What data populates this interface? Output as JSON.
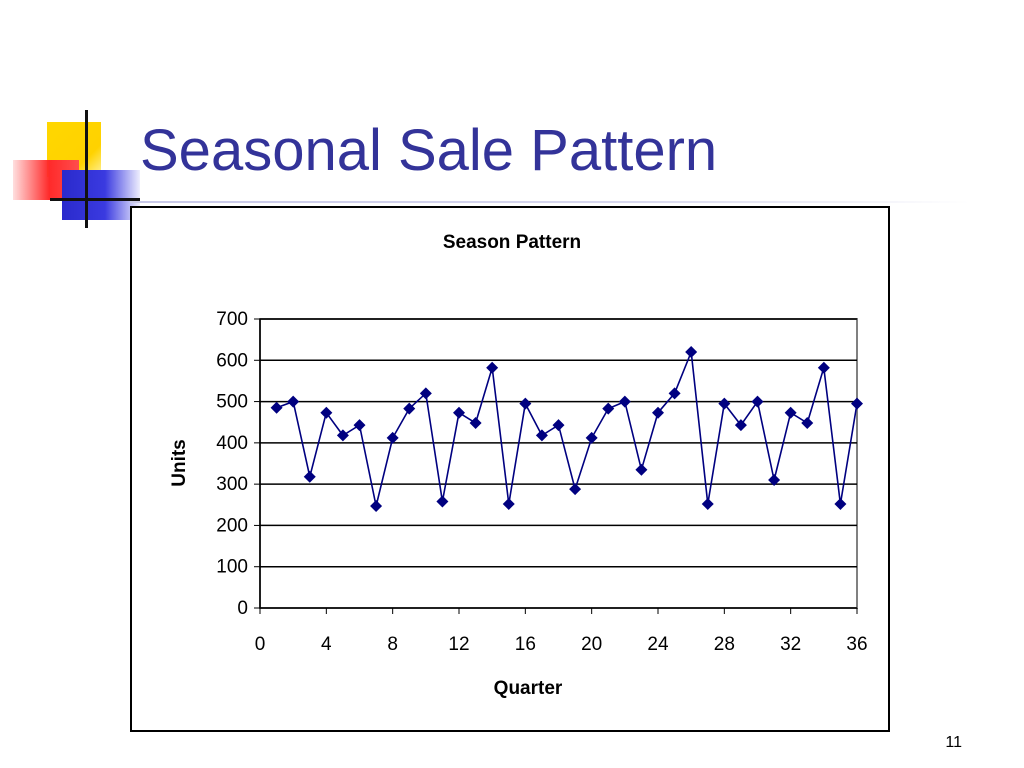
{
  "slide": {
    "title": "Seasonal Sale Pattern",
    "page_number": "11",
    "title_color": "#333399"
  },
  "chart_data": {
    "type": "line",
    "title": "Season Pattern",
    "xlabel": "Quarter",
    "ylabel": "Units",
    "xlim": [
      0,
      36
    ],
    "ylim": [
      0,
      700
    ],
    "xticks": [
      0,
      4,
      8,
      12,
      16,
      20,
      24,
      28,
      32,
      36
    ],
    "yticks": [
      0,
      100,
      200,
      300,
      400,
      500,
      600,
      700
    ],
    "grid": "horizontal",
    "legend": "none",
    "marker": "diamond",
    "series": [
      {
        "color": "#000080",
        "x": [
          1,
          2,
          3,
          4,
          5,
          6,
          7,
          8,
          9,
          10,
          11,
          12,
          13,
          14,
          15,
          16,
          17,
          18,
          19,
          20,
          21,
          22,
          23,
          24,
          25,
          26,
          27,
          28,
          29,
          30,
          31,
          32,
          33,
          34,
          35,
          36
        ],
        "y": [
          485,
          500,
          318,
          473,
          418,
          443,
          247,
          412,
          483,
          520,
          258,
          473,
          448,
          582,
          252,
          495,
          418,
          443,
          288,
          412,
          483,
          500,
          335,
          473,
          520,
          620,
          252,
          495,
          443,
          500,
          310,
          473,
          448,
          582,
          252,
          495
        ]
      }
    ]
  }
}
